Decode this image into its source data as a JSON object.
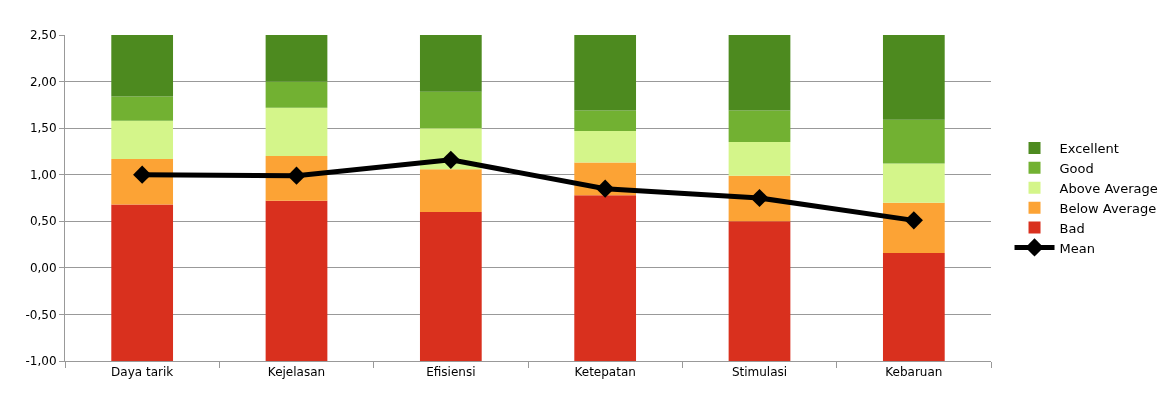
{
  "chart_data": {
    "type": "bar",
    "categories": [
      "Daya tarik",
      "Kejelasan",
      "Efisiensi",
      "Ketepatan",
      "Stimulasi",
      "Kebaruan"
    ],
    "series": [
      {
        "name": "Bad",
        "color": "#d9301e",
        "base": [
          -1,
          -1,
          -1,
          -1,
          -1,
          -1
        ],
        "values": [
          1.68,
          1.72,
          1.6,
          1.78,
          1.5,
          1.16
        ]
      },
      {
        "name": "Below Average",
        "color": "#fca335",
        "base": [
          0.68,
          0.72,
          0.6,
          0.78,
          0.5,
          0.16
        ],
        "values": [
          0.49,
          0.48,
          0.46,
          0.35,
          0.49,
          0.54
        ]
      },
      {
        "name": "Above Average",
        "color": "#d4f58a",
        "base": [
          1.17,
          1.2,
          1.06,
          1.13,
          0.99,
          0.7
        ],
        "values": [
          0.41,
          0.52,
          0.44,
          0.34,
          0.36,
          0.42
        ]
      },
      {
        "name": "Good",
        "color": "#72b132",
        "base": [
          1.58,
          1.72,
          1.5,
          1.47,
          1.35,
          1.12
        ],
        "values": [
          0.26,
          0.28,
          0.39,
          0.22,
          0.34,
          0.47
        ]
      },
      {
        "name": "Excellent",
        "color": "#4d8a1f",
        "base": [
          1.84,
          2.0,
          1.89,
          1.69,
          1.69,
          1.59
        ],
        "values": [
          0.66,
          0.5,
          0.61,
          0.81,
          0.81,
          0.91
        ]
      },
      {
        "name": "Mean",
        "type": "line",
        "color": "#000000",
        "marker": "diamond",
        "line_style": "solid",
        "values": [
          1.0,
          0.99,
          1.16,
          0.85,
          0.75,
          0.51
        ]
      }
    ],
    "ylim": [
      -1,
      2.5
    ],
    "yticks": [
      {
        "value": -1,
        "label": "-1,00"
      },
      {
        "value": -0.5,
        "label": "-0,50"
      },
      {
        "value": 0,
        "label": "0,00"
      },
      {
        "value": 0.5,
        "label": "0,50"
      },
      {
        "value": 1,
        "label": "1,00"
      },
      {
        "value": 1.5,
        "label": "1,50"
      },
      {
        "value": 2,
        "label": "2,00"
      },
      {
        "value": 2.5,
        "label": "2,50"
      }
    ],
    "grid": "y",
    "legend": "right"
  }
}
